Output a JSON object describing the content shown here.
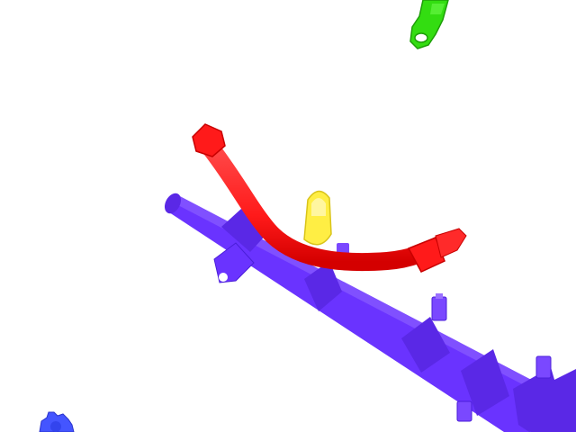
{
  "scene": {
    "background": "#ffffff",
    "parts": [
      {
        "name": "fuel-rail",
        "color": "#6a33ff"
      },
      {
        "name": "fuel-line-hose",
        "color": "#ff1a1a"
      },
      {
        "name": "clip",
        "color": "#ffee44"
      },
      {
        "name": "bracket",
        "color": "#33dd11"
      },
      {
        "name": "gear",
        "color": "#4455ff"
      }
    ]
  }
}
